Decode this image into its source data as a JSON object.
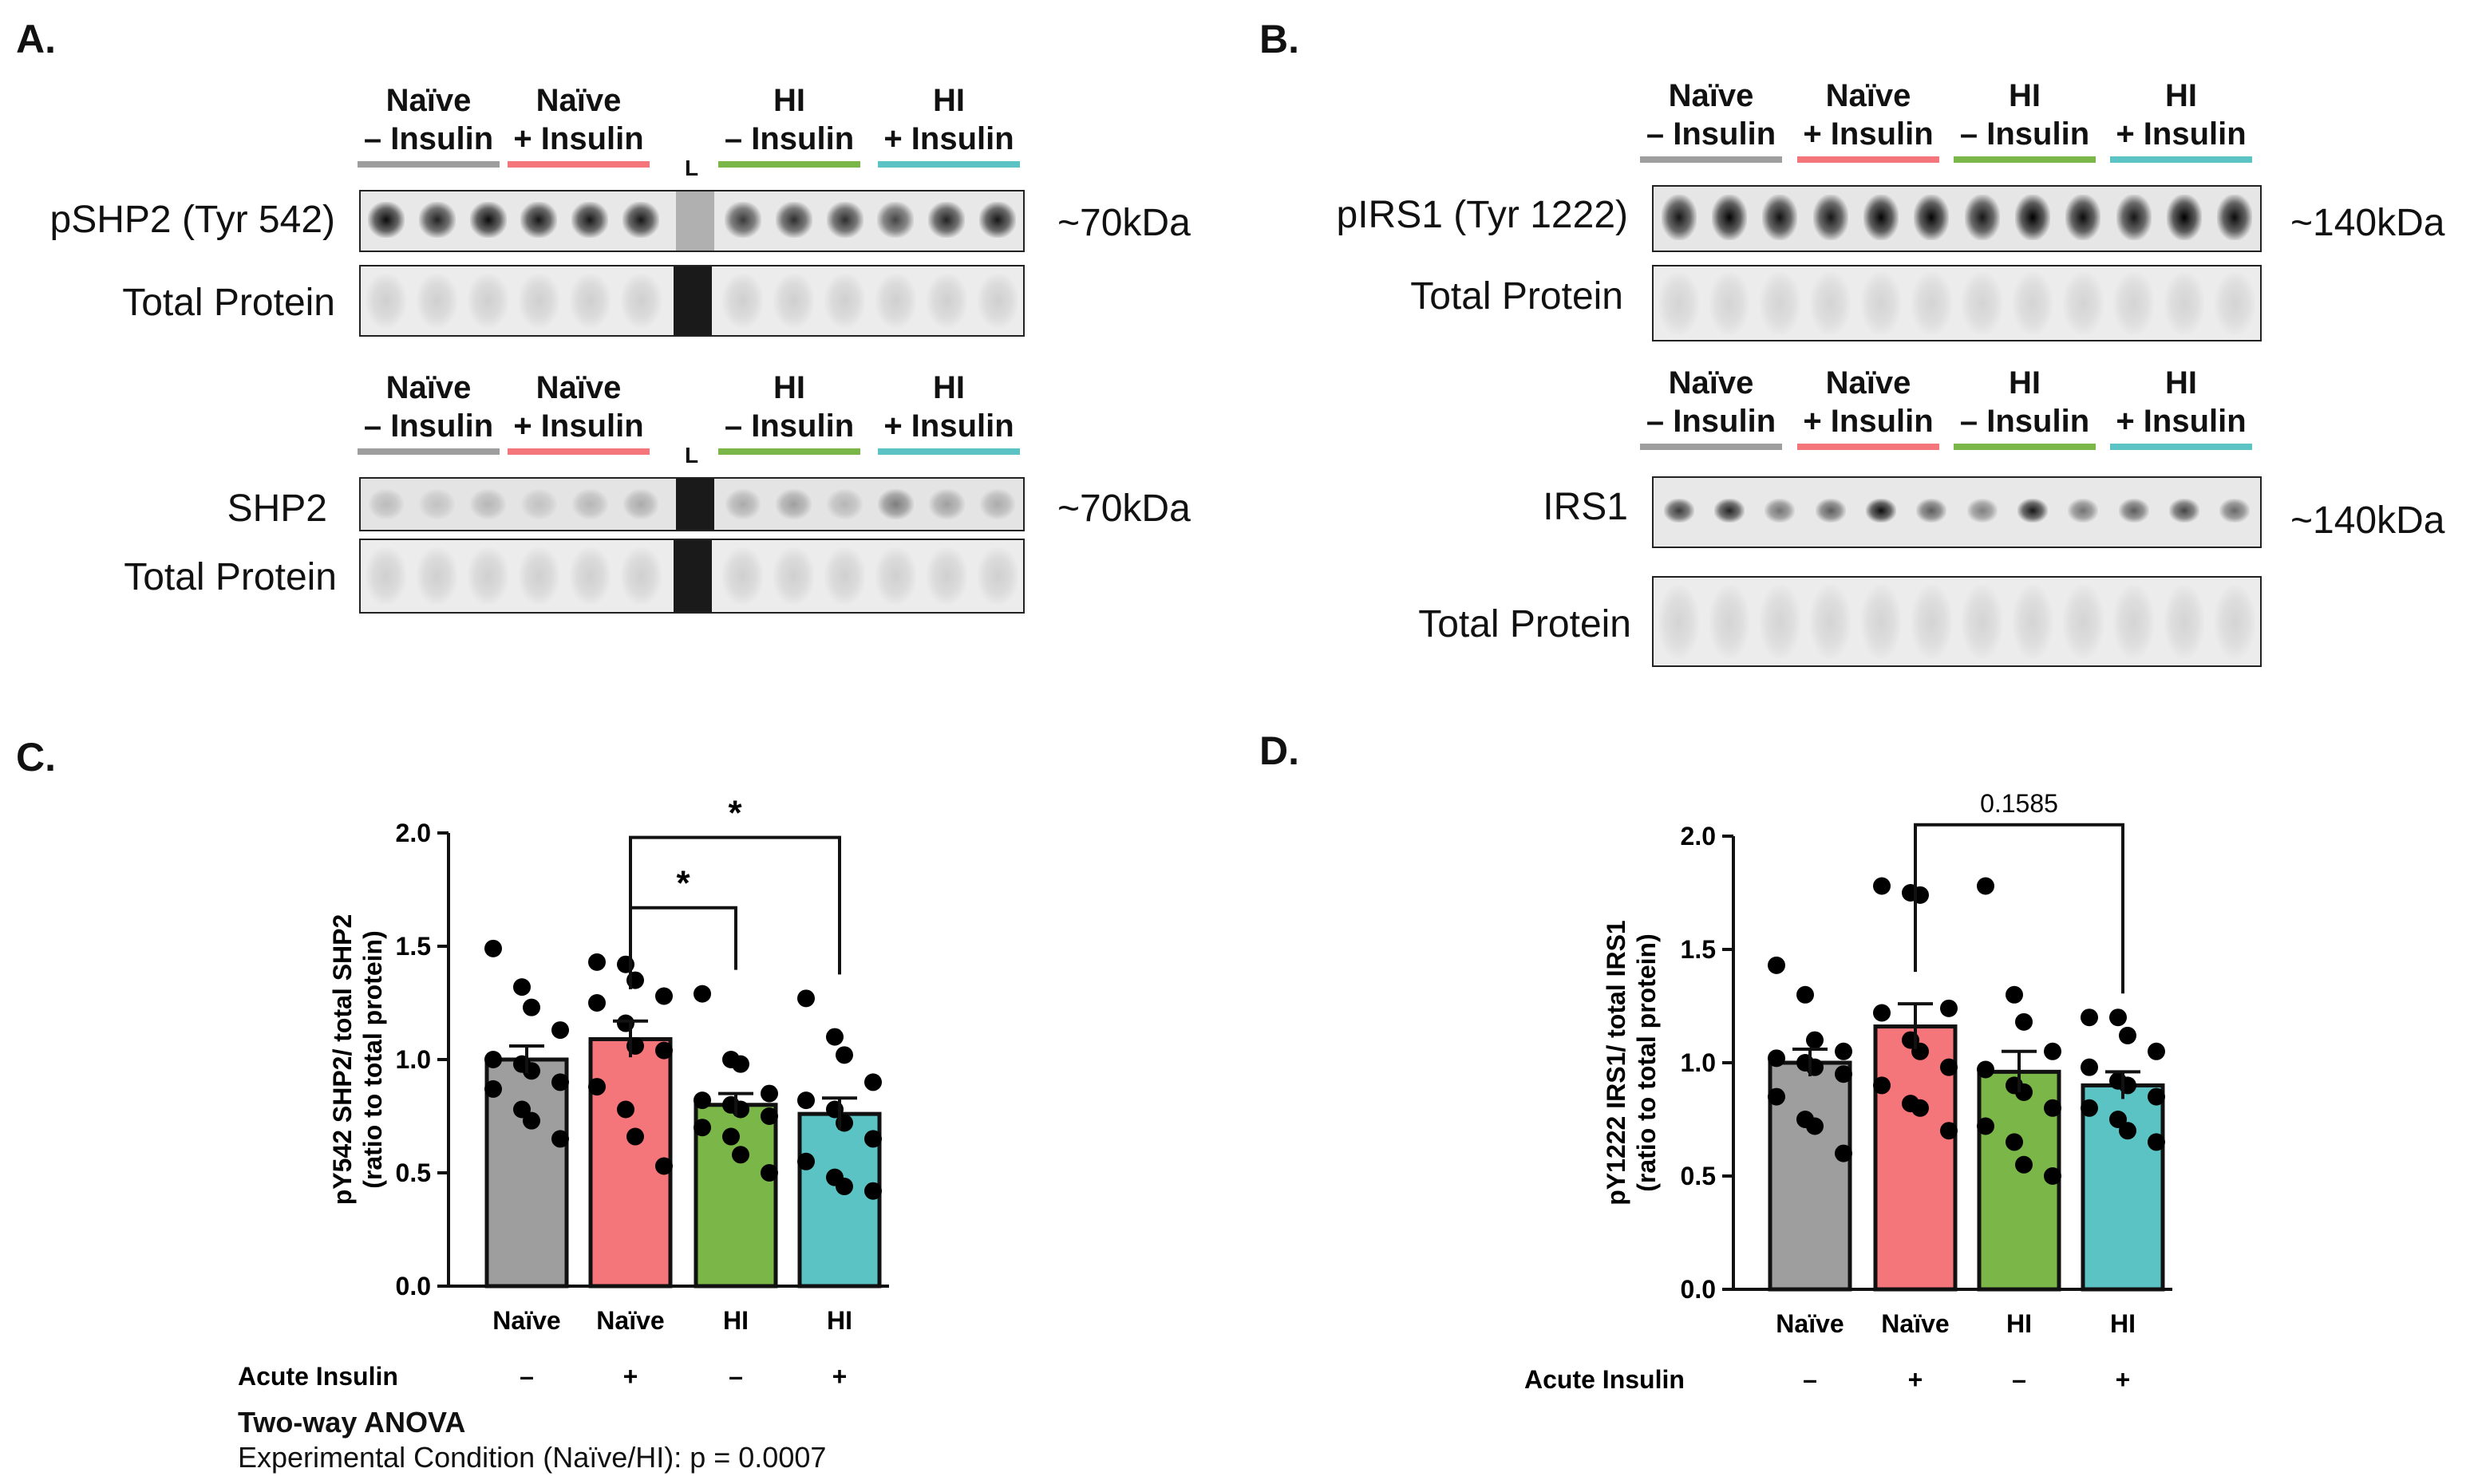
{
  "panels": {
    "A": {
      "label": "A.",
      "groups": [
        {
          "line1": "Naïve",
          "line2": "– Insulin",
          "color": "#9e9e9e"
        },
        {
          "line1": "Naïve",
          "line2": "+ Insulin",
          "color": "#f4757a"
        },
        {
          "line1": "HI",
          "line2": "– Insulin",
          "color": "#7ab648"
        },
        {
          "line1": "HI",
          "line2": "+ Insulin",
          "color": "#5bc3c4"
        }
      ],
      "ladder": "L",
      "blot1_label": "pSHP2 (Tyr 542)",
      "blot1_kda": "~70kDa",
      "tp_label": "Total Protein",
      "blot2_label": "SHP2",
      "blot2_kda": "~70kDa"
    },
    "B": {
      "label": "B.",
      "groups": [
        {
          "line1": "Naïve",
          "line2": "– Insulin",
          "color": "#9e9e9e"
        },
        {
          "line1": "Naïve",
          "line2": "+ Insulin",
          "color": "#f4757a"
        },
        {
          "line1": "HI",
          "line2": "– Insulin",
          "color": "#7ab648"
        },
        {
          "line1": "HI",
          "line2": "+ Insulin",
          "color": "#5bc3c4"
        }
      ],
      "blot1_label": "pIRS1 (Tyr 1222)",
      "blot1_kda": "~140kDa",
      "tp_label": "Total Protein",
      "blot2_label": "IRS1",
      "blot2_kda": "~140kDa"
    },
    "C": {
      "label": "C."
    },
    "D": {
      "label": "D."
    }
  },
  "footnote": {
    "title": "Two-way ANOVA",
    "text": "Experimental Condition (Naïve/HI): p = 0.0007"
  },
  "chart_data": [
    {
      "type": "bar",
      "panel": "C",
      "ylabel_line1": "pY542 SHP2/ total SHP2",
      "ylabel_line2": "(ratio to total protein)",
      "ylim": [
        0,
        2.0
      ],
      "yticks": [
        "0.0",
        "0.5",
        "1.0",
        "1.5",
        "2.0"
      ],
      "categories": [
        "Naïve",
        "Naïve",
        "HI",
        "HI"
      ],
      "row_label": "Acute Insulin",
      "row_values": [
        "–",
        "+",
        "–",
        "+"
      ],
      "colors": [
        "#9e9e9e",
        "#f4757a",
        "#7ab648",
        "#5bc3c4"
      ],
      "values": [
        1.0,
        1.09,
        0.8,
        0.76
      ],
      "sem": [
        0.06,
        0.08,
        0.05,
        0.07
      ],
      "points": [
        [
          1.49,
          1.32,
          1.23,
          1.13,
          1.0,
          0.98,
          0.95,
          0.9,
          0.87,
          0.78,
          0.73,
          0.65
        ],
        [
          1.43,
          1.42,
          1.35,
          1.28,
          1.25,
          1.16,
          1.06,
          1.04,
          0.88,
          0.78,
          0.66,
          0.53
        ],
        [
          1.29,
          1.0,
          0.98,
          0.85,
          0.82,
          0.8,
          0.78,
          0.75,
          0.7,
          0.66,
          0.58,
          0.5
        ],
        [
          1.27,
          1.1,
          1.02,
          0.9,
          0.82,
          0.78,
          0.72,
          0.65,
          0.55,
          0.48,
          0.44,
          0.42
        ]
      ],
      "brackets": [
        {
          "from": 1,
          "to": 2,
          "label": "*",
          "y": 1.67
        },
        {
          "from": 1,
          "to": 3,
          "label": "*",
          "y": 1.98
        }
      ]
    },
    {
      "type": "bar",
      "panel": "D",
      "ylabel_line1": "pY1222 IRS1/ total IRS1",
      "ylabel_line2": "(ratio to total protein)",
      "ylim": [
        0,
        2.0
      ],
      "yticks": [
        "0.0",
        "0.5",
        "1.0",
        "1.5",
        "2.0"
      ],
      "categories": [
        "Naïve",
        "Naïve",
        "HI",
        "HI"
      ],
      "row_label": "Acute Insulin",
      "row_values": [
        "–",
        "+",
        "–",
        "+"
      ],
      "colors": [
        "#9e9e9e",
        "#f4757a",
        "#7ab648",
        "#5bc3c4"
      ],
      "values": [
        1.0,
        1.16,
        0.96,
        0.9
      ],
      "sem": [
        0.06,
        0.1,
        0.09,
        0.06
      ],
      "points": [
        [
          1.43,
          1.3,
          1.1,
          1.05,
          1.02,
          1.0,
          0.98,
          0.95,
          0.85,
          0.75,
          0.72,
          0.6
        ],
        [
          1.78,
          1.75,
          1.74,
          1.24,
          1.22,
          1.1,
          1.05,
          0.98,
          0.9,
          0.82,
          0.8,
          0.7
        ],
        [
          1.78,
          1.3,
          1.18,
          1.05,
          0.97,
          0.9,
          0.87,
          0.8,
          0.72,
          0.65,
          0.55,
          0.5
        ],
        [
          1.2,
          1.2,
          1.12,
          1.05,
          0.98,
          0.92,
          0.9,
          0.85,
          0.8,
          0.75,
          0.7,
          0.65
        ]
      ],
      "brackets": [
        {
          "from": 1,
          "to": 3,
          "label": "0.1585",
          "y": 2.05
        }
      ]
    }
  ]
}
